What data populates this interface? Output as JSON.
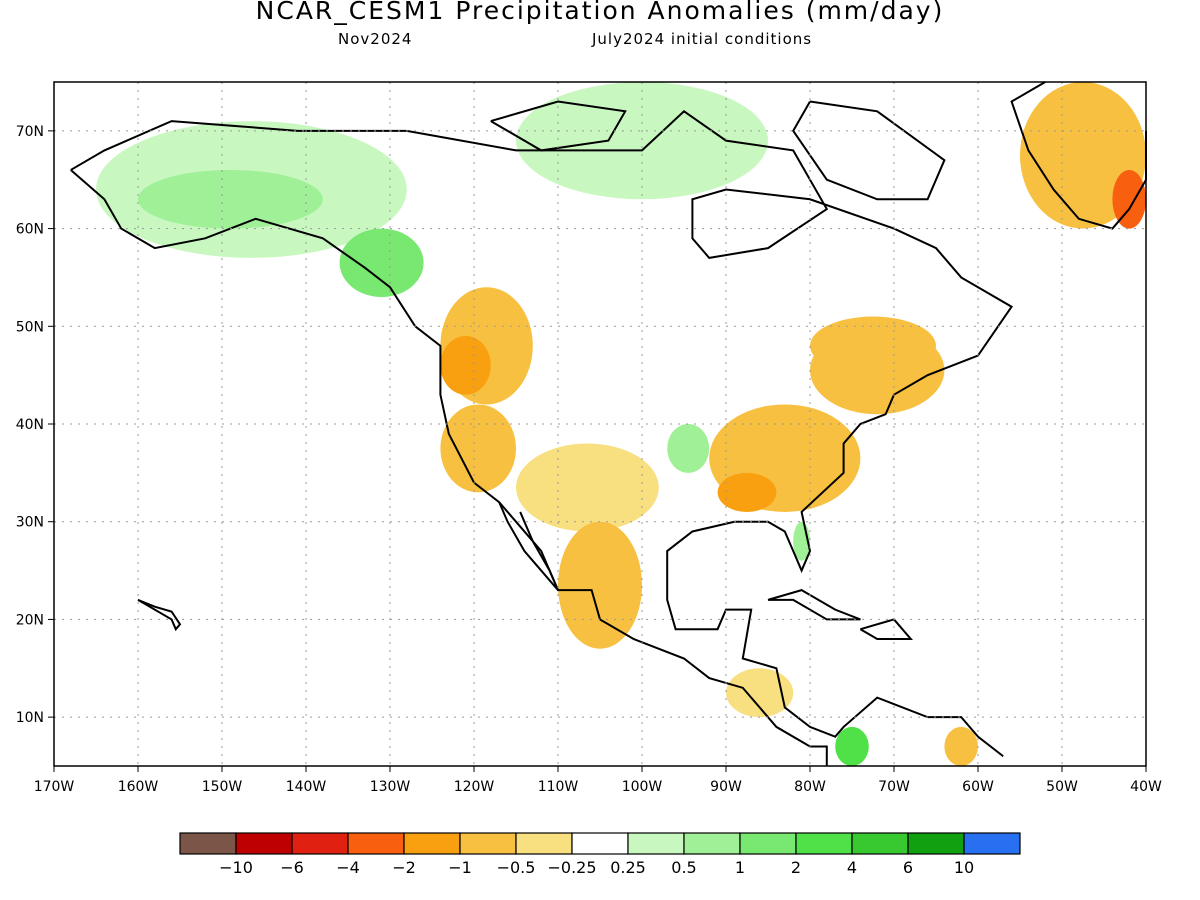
{
  "title": "NCAR_CESM1 Precipitation Anomalies (mm/day)",
  "subtitle_left": "Nov2024",
  "subtitle_right": "July2024 initial conditions",
  "map": {
    "lon_range": [
      -170,
      -40
    ],
    "lat_range": [
      5,
      75
    ],
    "lat_ticks": [
      {
        "value": 70,
        "label": "70N"
      },
      {
        "value": 60,
        "label": "60N"
      },
      {
        "value": 50,
        "label": "50N"
      },
      {
        "value": 40,
        "label": "40N"
      },
      {
        "value": 30,
        "label": "30N"
      },
      {
        "value": 20,
        "label": "20N"
      },
      {
        "value": 10,
        "label": "10N"
      }
    ],
    "lon_ticks": [
      {
        "value": -170,
        "label": "170W"
      },
      {
        "value": -160,
        "label": "160W"
      },
      {
        "value": -150,
        "label": "150W"
      },
      {
        "value": -140,
        "label": "140W"
      },
      {
        "value": -130,
        "label": "130W"
      },
      {
        "value": -120,
        "label": "120W"
      },
      {
        "value": -110,
        "label": "110W"
      },
      {
        "value": -100,
        "label": "100W"
      },
      {
        "value": -90,
        "label": "90W"
      },
      {
        "value": -80,
        "label": "80W"
      },
      {
        "value": -70,
        "label": "70W"
      },
      {
        "value": -60,
        "label": "60W"
      },
      {
        "value": -50,
        "label": "50W"
      },
      {
        "value": -40,
        "label": "40W"
      }
    ],
    "grid": "dotted"
  },
  "colorbar": {
    "colors": [
      "#7a5548",
      "#bf0000",
      "#e02010",
      "#f86010",
      "#f8a010",
      "#f8c040",
      "#f8e080",
      "#ffffff",
      "#c8f8c0",
      "#a0f098",
      "#78e870",
      "#50e048",
      "#38c830",
      "#10a010",
      "#2870f0"
    ],
    "labels": [
      "−10",
      "−6",
      "−4",
      "−2",
      "−1",
      "−0.5",
      "−0.25",
      "0.25",
      "0.5",
      "1",
      "2",
      "4",
      "6",
      "10"
    ]
  },
  "anomaly_regions": [
    {
      "name": "alaska-wet",
      "color": "#c8f8c0",
      "lon": [
        -165,
        -128
      ],
      "lat": [
        57,
        71
      ]
    },
    {
      "name": "alaska-core-wet",
      "color": "#a0f098",
      "lon": [
        -160,
        -138
      ],
      "lat": [
        60,
        66
      ]
    },
    {
      "name": "bc-coast-wet",
      "color": "#78e870",
      "lon": [
        -136,
        -126
      ],
      "lat": [
        53,
        60
      ]
    },
    {
      "name": "arctic-archipelago-wet",
      "color": "#c8f8c0",
      "lon": [
        -115,
        -85
      ],
      "lat": [
        63,
        75
      ]
    },
    {
      "name": "pacific-northwest-dry",
      "color": "#f8c040",
      "lon": [
        -124,
        -113
      ],
      "lat": [
        42,
        54
      ]
    },
    {
      "name": "pacific-northwest-core-dry",
      "color": "#f8a010",
      "lon": [
        -124,
        -118
      ],
      "lat": [
        43,
        49
      ]
    },
    {
      "name": "california-dry",
      "color": "#f8c040",
      "lon": [
        -124,
        -115
      ],
      "lat": [
        33,
        42
      ]
    },
    {
      "name": "southwest-dry",
      "color": "#f8e080",
      "lon": [
        -115,
        -98
      ],
      "lat": [
        29,
        38
      ]
    },
    {
      "name": "ohio-valley-dry",
      "color": "#f8c040",
      "lon": [
        -92,
        -74
      ],
      "lat": [
        31,
        42
      ]
    },
    {
      "name": "southeast-core-dry",
      "color": "#f8a010",
      "lon": [
        -91,
        -84
      ],
      "lat": [
        31,
        35
      ]
    },
    {
      "name": "northeast-dry",
      "color": "#f8c040",
      "lon": [
        -80,
        -64
      ],
      "lat": [
        41,
        50
      ]
    },
    {
      "name": "quebec-dry",
      "color": "#f8c040",
      "lon": [
        -80,
        -65
      ],
      "lat": [
        45,
        51
      ]
    },
    {
      "name": "plains-wet",
      "color": "#a0f098",
      "lon": [
        -97,
        -92
      ],
      "lat": [
        35,
        40
      ]
    },
    {
      "name": "florida-wet",
      "color": "#a0f098",
      "lon": [
        -82,
        -80
      ],
      "lat": [
        26,
        30
      ]
    },
    {
      "name": "mexico-pacific-dry",
      "color": "#f8c040",
      "lon": [
        -110,
        -100
      ],
      "lat": [
        17,
        30
      ]
    },
    {
      "name": "central-america-dry",
      "color": "#f8e080",
      "lon": [
        -90,
        -82
      ],
      "lat": [
        10,
        15
      ]
    },
    {
      "name": "colombia-wet",
      "color": "#50e048",
      "lon": [
        -77,
        -73
      ],
      "lat": [
        5,
        9
      ]
    },
    {
      "name": "venezuela-dry",
      "color": "#f8c040",
      "lon": [
        -64,
        -60
      ],
      "lat": [
        5,
        9
      ]
    },
    {
      "name": "greenland-dry",
      "color": "#f8c040",
      "lon": [
        -55,
        -40
      ],
      "lat": [
        60,
        75
      ]
    },
    {
      "name": "greenland-core-dry",
      "color": "#f86010",
      "lon": [
        -44,
        -40
      ],
      "lat": [
        60,
        66
      ]
    }
  ]
}
